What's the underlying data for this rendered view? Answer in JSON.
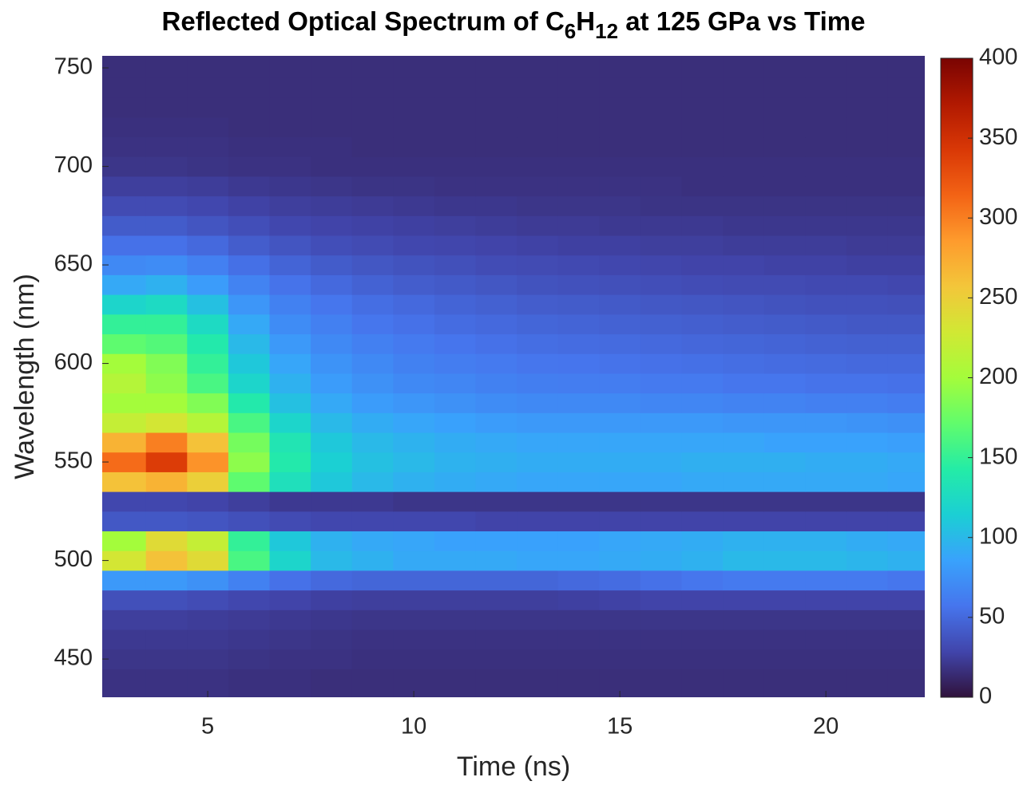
{
  "chart_data": {
    "type": "heatmap",
    "title": "Reflected Optical Spectrum of C6H12 at 125 GPa vs Time",
    "x_label": "Time (ns)",
    "y_label": "Wavelength (nm)",
    "xlim": [
      2.44,
      22.4
    ],
    "ylim": [
      430.6,
      756.1
    ],
    "xticks": [
      5,
      10,
      15,
      20
    ],
    "yticks": [
      450,
      500,
      550,
      600,
      650,
      700,
      750
    ],
    "clim": [
      0,
      400
    ],
    "cticks": [
      0,
      50,
      100,
      150,
      200,
      250,
      300,
      350,
      400
    ],
    "colormap": [
      "#30123b",
      "#4145ab",
      "#4675ed",
      "#39a2fc",
      "#1bcfd4",
      "#24eca6",
      "#61fc6c",
      "#a4fc3b",
      "#d1e834",
      "#f3c63a",
      "#fe9b2d",
      "#f36315",
      "#d93806",
      "#b11901",
      "#7a0402"
    ],
    "x": [
      3,
      4,
      5,
      6,
      7,
      8,
      9,
      10,
      11,
      12,
      13,
      14,
      15,
      16,
      17,
      18,
      19,
      20,
      21,
      22
    ],
    "y": [
      440,
      450,
      460,
      470,
      480,
      490,
      500,
      510,
      520,
      530,
      540,
      550,
      560,
      570,
      580,
      590,
      600,
      610,
      620,
      630,
      640,
      650,
      660,
      670,
      680,
      690,
      700,
      710,
      720,
      730,
      740,
      750
    ],
    "values": [
      [
        18,
        18,
        18,
        17,
        17,
        16,
        16,
        16,
        16,
        16,
        16,
        16,
        16,
        16,
        16,
        16,
        16,
        16,
        16,
        16
      ],
      [
        20,
        20,
        20,
        19,
        18,
        18,
        17,
        17,
        17,
        17,
        17,
        17,
        17,
        17,
        17,
        17,
        17,
        17,
        17,
        17
      ],
      [
        22,
        22,
        22,
        21,
        20,
        19,
        18,
        18,
        18,
        18,
        18,
        18,
        18,
        18,
        18,
        18,
        18,
        18,
        18,
        18
      ],
      [
        25,
        25,
        24,
        23,
        22,
        21,
        20,
        20,
        20,
        20,
        20,
        20,
        20,
        20,
        20,
        20,
        20,
        20,
        20,
        20
      ],
      [
        35,
        35,
        33,
        30,
        28,
        26,
        25,
        25,
        25,
        25,
        25,
        26,
        27,
        28,
        28,
        28,
        28,
        28,
        28,
        28
      ],
      [
        80,
        80,
        75,
        65,
        55,
        50,
        48,
        48,
        48,
        48,
        48,
        50,
        52,
        55,
        58,
        60,
        60,
        60,
        60,
        58
      ],
      [
        230,
        260,
        240,
        160,
        120,
        100,
        95,
        90,
        90,
        90,
        88,
        88,
        90,
        92,
        95,
        100,
        100,
        100,
        98,
        95
      ],
      [
        200,
        240,
        220,
        150,
        110,
        95,
        90,
        88,
        85,
        85,
        85,
        85,
        88,
        90,
        92,
        95,
        95,
        95,
        92,
        90
      ],
      [
        40,
        40,
        38,
        35,
        32,
        30,
        30,
        30,
        30,
        28,
        28,
        28,
        28,
        28,
        28,
        28,
        28,
        28,
        28,
        28
      ],
      [
        30,
        30,
        28,
        25,
        22,
        22,
        22,
        20,
        20,
        20,
        20,
        20,
        20,
        20,
        20,
        20,
        20,
        20,
        20,
        20
      ],
      [
        260,
        270,
        250,
        170,
        130,
        110,
        100,
        95,
        92,
        90,
        88,
        88,
        88,
        88,
        90,
        90,
        90,
        90,
        90,
        88
      ],
      [
        310,
        340,
        290,
        190,
        140,
        115,
        105,
        100,
        96,
        94,
        92,
        92,
        92,
        92,
        94,
        94,
        94,
        92,
        92,
        90
      ],
      [
        270,
        300,
        260,
        180,
        135,
        110,
        100,
        96,
        92,
        90,
        88,
        88,
        88,
        88,
        88,
        88,
        86,
        86,
        86,
        84
      ],
      [
        220,
        230,
        210,
        160,
        120,
        100,
        92,
        88,
        85,
        82,
        80,
        80,
        80,
        80,
        80,
        78,
        78,
        78,
        76,
        74
      ],
      [
        200,
        200,
        185,
        140,
        105,
        90,
        82,
        78,
        75,
        72,
        70,
        70,
        70,
        68,
        68,
        66,
        66,
        64,
        64,
        62
      ],
      [
        210,
        190,
        160,
        120,
        95,
        82,
        75,
        70,
        68,
        65,
        63,
        62,
        62,
        60,
        60,
        58,
        58,
        56,
        56,
        55
      ],
      [
        200,
        185,
        150,
        110,
        88,
        76,
        70,
        65,
        62,
        60,
        58,
        57,
        56,
        55,
        54,
        53,
        52,
        51,
        50,
        50
      ],
      [
        170,
        165,
        140,
        100,
        80,
        70,
        64,
        60,
        57,
        55,
        53,
        52,
        51,
        50,
        49,
        48,
        47,
        46,
        45,
        45
      ],
      [
        150,
        150,
        125,
        90,
        72,
        64,
        58,
        55,
        52,
        50,
        48,
        47,
        46,
        45,
        44,
        43,
        42,
        41,
        40,
        40
      ],
      [
        120,
        125,
        105,
        78,
        65,
        58,
        53,
        50,
        47,
        45,
        43,
        42,
        41,
        40,
        39,
        38,
        37,
        36,
        36,
        35
      ],
      [
        90,
        95,
        82,
        66,
        56,
        50,
        46,
        43,
        41,
        39,
        37,
        36,
        35,
        34,
        33,
        32,
        32,
        31,
        31,
        30
      ],
      [
        70,
        72,
        64,
        54,
        47,
        42,
        39,
        37,
        35,
        33,
        32,
        31,
        30,
        29,
        28,
        28,
        27,
        27,
        26,
        26
      ],
      [
        55,
        55,
        50,
        43,
        38,
        34,
        32,
        30,
        29,
        28,
        27,
        26,
        26,
        25,
        25,
        24,
        24,
        24,
        23,
        23
      ],
      [
        42,
        42,
        38,
        34,
        30,
        28,
        27,
        26,
        25,
        24,
        23,
        23,
        22,
        22,
        22,
        21,
        21,
        21,
        21,
        21
      ],
      [
        32,
        32,
        30,
        27,
        25,
        24,
        23,
        22,
        21,
        21,
        20,
        20,
        20,
        19,
        19,
        19,
        19,
        19,
        19,
        19
      ],
      [
        25,
        25,
        24,
        22,
        21,
        20,
        19,
        19,
        18,
        18,
        18,
        18,
        18,
        18,
        17,
        17,
        17,
        17,
        17,
        17
      ],
      [
        20,
        20,
        19,
        18,
        18,
        17,
        17,
        17,
        17,
        17,
        17,
        17,
        17,
        17,
        17,
        17,
        17,
        17,
        17,
        17
      ],
      [
        18,
        18,
        18,
        17,
        17,
        17,
        16,
        16,
        16,
        16,
        16,
        16,
        16,
        16,
        16,
        16,
        16,
        16,
        16,
        16
      ],
      [
        17,
        17,
        17,
        16,
        16,
        16,
        16,
        16,
        16,
        16,
        16,
        16,
        16,
        16,
        16,
        16,
        16,
        16,
        16,
        16
      ],
      [
        16,
        16,
        16,
        16,
        16,
        16,
        16,
        16,
        16,
        16,
        16,
        16,
        16,
        16,
        16,
        16,
        16,
        16,
        16,
        16
      ],
      [
        16,
        16,
        16,
        16,
        16,
        16,
        16,
        16,
        16,
        16,
        16,
        16,
        16,
        16,
        16,
        16,
        16,
        16,
        16,
        16
      ],
      [
        16,
        16,
        16,
        16,
        16,
        16,
        16,
        16,
        16,
        16,
        16,
        16,
        16,
        16,
        16,
        16,
        16,
        16,
        16,
        16
      ]
    ]
  }
}
